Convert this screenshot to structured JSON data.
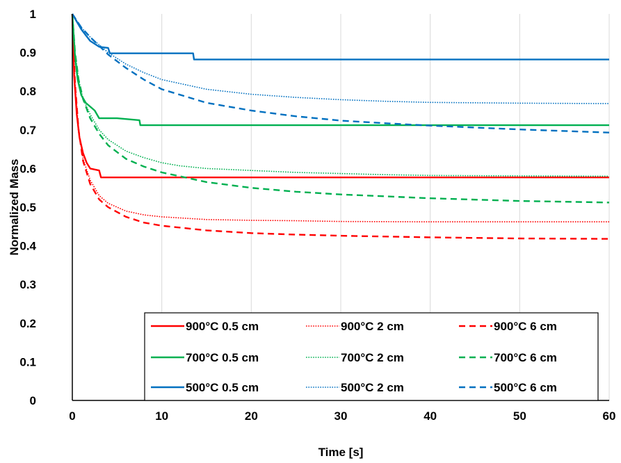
{
  "chart_data": {
    "type": "line",
    "title": "",
    "xlabel": "Time [s]",
    "ylabel": "Normalized Mass",
    "xlim": [
      0,
      60
    ],
    "ylim": [
      0,
      1
    ],
    "x_ticks": [
      "0",
      "10",
      "20",
      "30",
      "40",
      "50",
      "60"
    ],
    "y_ticks": [
      "0",
      "0.1",
      "0.2",
      "0.3",
      "0.4",
      "0.5",
      "0.6",
      "0.7",
      "0.8",
      "0.9",
      "1"
    ],
    "grid": "vertical",
    "legend_position": "bottom-right",
    "series": [
      {
        "name": "900°C 0.5 cm",
        "color": "#ff0000",
        "dash": "solid",
        "points": [
          [
            0,
            1
          ],
          [
            0.2,
            0.84
          ],
          [
            0.5,
            0.74
          ],
          [
            0.8,
            0.68
          ],
          [
            1.2,
            0.64
          ],
          [
            1.6,
            0.615
          ],
          [
            2,
            0.6
          ],
          [
            3,
            0.595
          ],
          [
            3.2,
            0.577
          ],
          [
            10,
            0.577
          ],
          [
            20,
            0.577
          ],
          [
            40,
            0.577
          ],
          [
            60,
            0.577
          ]
        ]
      },
      {
        "name": "900°C 2 cm",
        "color": "#ff0000",
        "dash": "dotted",
        "points": [
          [
            0,
            1
          ],
          [
            0.3,
            0.82
          ],
          [
            0.7,
            0.7
          ],
          [
            1.2,
            0.625
          ],
          [
            2,
            0.57
          ],
          [
            3,
            0.53
          ],
          [
            4,
            0.51
          ],
          [
            6,
            0.49
          ],
          [
            8,
            0.48
          ],
          [
            10,
            0.475
          ],
          [
            15,
            0.468
          ],
          [
            20,
            0.466
          ],
          [
            25,
            0.465
          ],
          [
            30,
            0.463
          ],
          [
            40,
            0.462
          ],
          [
            60,
            0.462
          ]
        ]
      },
      {
        "name": "900°C 6 cm",
        "color": "#ff0000",
        "dash": "dashed",
        "points": [
          [
            0,
            1
          ],
          [
            0.3,
            0.82
          ],
          [
            0.7,
            0.7
          ],
          [
            1.2,
            0.62
          ],
          [
            2,
            0.56
          ],
          [
            3,
            0.52
          ],
          [
            4,
            0.5
          ],
          [
            6,
            0.475
          ],
          [
            8,
            0.46
          ],
          [
            10,
            0.452
          ],
          [
            15,
            0.44
          ],
          [
            20,
            0.433
          ],
          [
            25,
            0.429
          ],
          [
            30,
            0.426
          ],
          [
            40,
            0.422
          ],
          [
            50,
            0.419
          ],
          [
            60,
            0.418
          ]
        ]
      },
      {
        "name": "700°C 0.5 cm",
        "color": "#00b050",
        "dash": "solid",
        "points": [
          [
            0,
            1
          ],
          [
            0.3,
            0.89
          ],
          [
            0.6,
            0.83
          ],
          [
            1,
            0.79
          ],
          [
            1.5,
            0.77
          ],
          [
            2,
            0.76
          ],
          [
            2.5,
            0.75
          ],
          [
            3,
            0.73
          ],
          [
            5,
            0.73
          ],
          [
            7.5,
            0.725
          ],
          [
            7.6,
            0.712
          ],
          [
            20,
            0.712
          ],
          [
            40,
            0.712
          ],
          [
            60,
            0.712
          ]
        ]
      },
      {
        "name": "700°C 2 cm",
        "color": "#00b050",
        "dash": "dotted",
        "points": [
          [
            0,
            1
          ],
          [
            0.3,
            0.9
          ],
          [
            0.7,
            0.83
          ],
          [
            1.2,
            0.78
          ],
          [
            2,
            0.74
          ],
          [
            3,
            0.7
          ],
          [
            4,
            0.675
          ],
          [
            6,
            0.645
          ],
          [
            8,
            0.628
          ],
          [
            10,
            0.615
          ],
          [
            12,
            0.607
          ],
          [
            15,
            0.6
          ],
          [
            20,
            0.595
          ],
          [
            25,
            0.59
          ],
          [
            30,
            0.587
          ],
          [
            35,
            0.584
          ],
          [
            40,
            0.582
          ],
          [
            50,
            0.581
          ],
          [
            60,
            0.58
          ]
        ]
      },
      {
        "name": "700°C 6 cm",
        "color": "#00b050",
        "dash": "dashed",
        "points": [
          [
            0,
            1
          ],
          [
            0.3,
            0.9
          ],
          [
            0.7,
            0.83
          ],
          [
            1.2,
            0.78
          ],
          [
            2,
            0.73
          ],
          [
            3,
            0.69
          ],
          [
            4,
            0.66
          ],
          [
            6,
            0.625
          ],
          [
            8,
            0.605
          ],
          [
            10,
            0.59
          ],
          [
            15,
            0.565
          ],
          [
            20,
            0.55
          ],
          [
            25,
            0.54
          ],
          [
            30,
            0.533
          ],
          [
            40,
            0.523
          ],
          [
            50,
            0.516
          ],
          [
            60,
            0.512
          ]
        ]
      },
      {
        "name": "500°C 0.5 cm",
        "color": "#0070c0",
        "dash": "solid",
        "points": [
          [
            0,
            1
          ],
          [
            0.5,
            0.98
          ],
          [
            1,
            0.96
          ],
          [
            1.5,
            0.945
          ],
          [
            2,
            0.93
          ],
          [
            3,
            0.915
          ],
          [
            4,
            0.912
          ],
          [
            4.2,
            0.898
          ],
          [
            8,
            0.898
          ],
          [
            13.5,
            0.898
          ],
          [
            13.6,
            0.882
          ],
          [
            20,
            0.882
          ],
          [
            40,
            0.882
          ],
          [
            60,
            0.882
          ]
        ]
      },
      {
        "name": "500°C 2 cm",
        "color": "#0070c0",
        "dash": "dotted",
        "points": [
          [
            0,
            1
          ],
          [
            1,
            0.965
          ],
          [
            2,
            0.94
          ],
          [
            4,
            0.9
          ],
          [
            6,
            0.87
          ],
          [
            8,
            0.848
          ],
          [
            10,
            0.83
          ],
          [
            15,
            0.805
          ],
          [
            20,
            0.792
          ],
          [
            25,
            0.784
          ],
          [
            30,
            0.778
          ],
          [
            35,
            0.774
          ],
          [
            40,
            0.771
          ],
          [
            50,
            0.769
          ],
          [
            60,
            0.768
          ]
        ]
      },
      {
        "name": "500°C 6 cm",
        "color": "#0070c0",
        "dash": "dashed",
        "points": [
          [
            0,
            1
          ],
          [
            1,
            0.965
          ],
          [
            2,
            0.94
          ],
          [
            4,
            0.895
          ],
          [
            6,
            0.86
          ],
          [
            8,
            0.83
          ],
          [
            10,
            0.805
          ],
          [
            15,
            0.77
          ],
          [
            20,
            0.75
          ],
          [
            25,
            0.735
          ],
          [
            30,
            0.724
          ],
          [
            35,
            0.717
          ],
          [
            40,
            0.711
          ],
          [
            50,
            0.701
          ],
          [
            60,
            0.693
          ]
        ]
      }
    ]
  }
}
